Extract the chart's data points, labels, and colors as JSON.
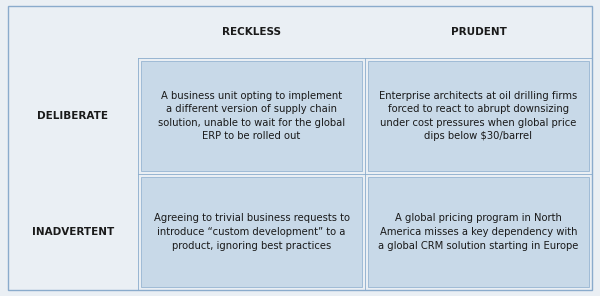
{
  "col_headers": [
    "RECKLESS",
    "PRUDENT"
  ],
  "row_headers": [
    "DELIBERATE",
    "INADVERTENT"
  ],
  "cells": [
    [
      "A business unit opting to implement\na different version of supply chain\nsolution, unable to wait for the global\nERP to be rolled out",
      "Enterprise architects at oil drilling firms\nforced to react to abrupt downsizing\nunder cost pressures when global price\ndips below $30/barrel"
    ],
    [
      "Agreeing to trivial business requests to\nintroduce “custom development” to a\nproduct, ignoring best practices",
      "A global pricing program in North\nAmerica misses a key dependency with\na global CRM solution starting in Europe"
    ]
  ],
  "outer_bg_color": "#eaeff4",
  "cell_bg_color": "#c8d9e8",
  "border_color": "#8aabcc",
  "header_font_size": 7.5,
  "row_header_font_size": 7.5,
  "cell_font_size": 7.2,
  "text_color": "#1a1a1a"
}
